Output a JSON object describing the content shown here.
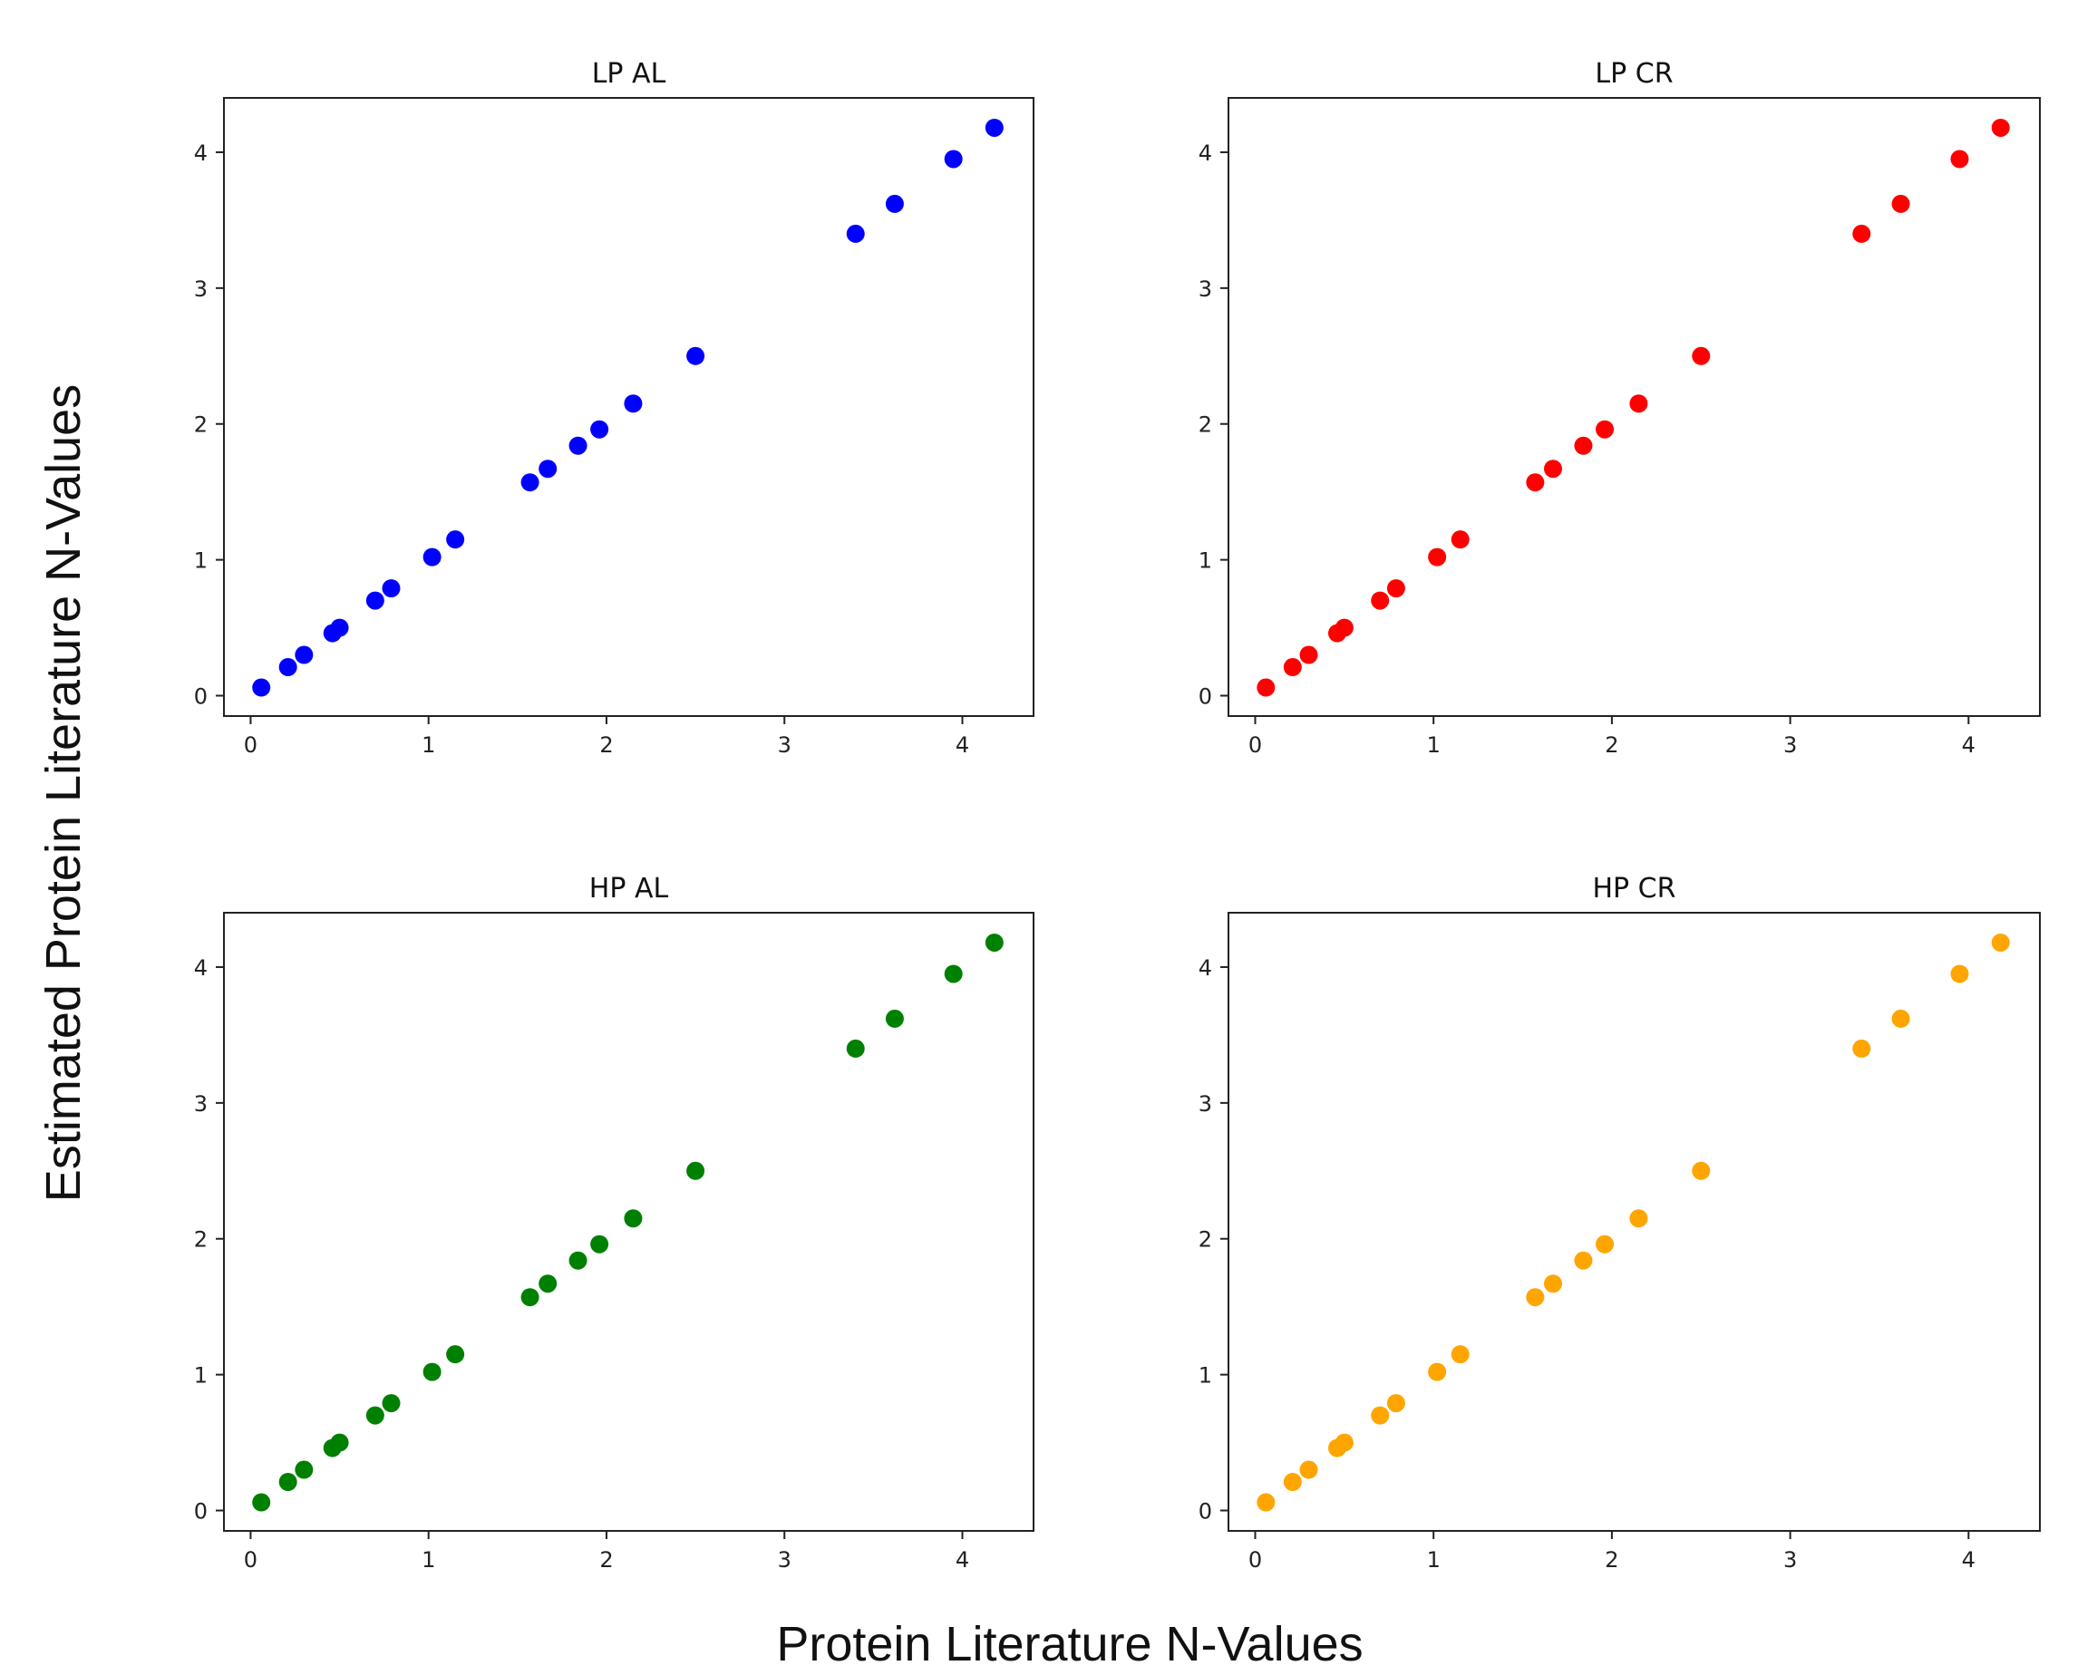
{
  "figure": {
    "xlabel": "Protein Literature N-Values",
    "ylabel": "Estimated Protein Literature N-Values"
  },
  "chart_data": [
    {
      "type": "scatter",
      "title": "LP AL",
      "color": "#0000ff",
      "xlim": [
        -0.15,
        4.4
      ],
      "ylim": [
        -0.15,
        4.4
      ],
      "xticks": [
        0,
        1,
        2,
        3,
        4
      ],
      "yticks": [
        0,
        1,
        2,
        3,
        4
      ],
      "x": [
        0.06,
        0.21,
        0.3,
        0.46,
        0.5,
        0.7,
        0.79,
        1.02,
        1.15,
        1.57,
        1.67,
        1.84,
        1.96,
        2.15,
        2.5,
        3.4,
        3.62,
        3.95,
        4.18
      ],
      "y": [
        0.06,
        0.21,
        0.3,
        0.46,
        0.5,
        0.7,
        0.79,
        1.02,
        1.15,
        1.57,
        1.67,
        1.84,
        1.96,
        2.15,
        2.5,
        3.4,
        3.62,
        3.95,
        4.18
      ]
    },
    {
      "type": "scatter",
      "title": "LP CR",
      "color": "#ff0000",
      "xlim": [
        -0.15,
        4.4
      ],
      "ylim": [
        -0.15,
        4.4
      ],
      "xticks": [
        0,
        1,
        2,
        3,
        4
      ],
      "yticks": [
        0,
        1,
        2,
        3,
        4
      ],
      "x": [
        0.06,
        0.21,
        0.3,
        0.46,
        0.5,
        0.7,
        0.79,
        1.02,
        1.15,
        1.57,
        1.67,
        1.84,
        1.96,
        2.15,
        2.5,
        3.4,
        3.62,
        3.95,
        4.18
      ],
      "y": [
        0.06,
        0.21,
        0.3,
        0.46,
        0.5,
        0.7,
        0.79,
        1.02,
        1.15,
        1.57,
        1.67,
        1.84,
        1.96,
        2.15,
        2.5,
        3.4,
        3.62,
        3.95,
        4.18
      ]
    },
    {
      "type": "scatter",
      "title": "HP AL",
      "color": "#008000",
      "xlim": [
        -0.15,
        4.4
      ],
      "ylim": [
        -0.15,
        4.4
      ],
      "xticks": [
        0,
        1,
        2,
        3,
        4
      ],
      "yticks": [
        0,
        1,
        2,
        3,
        4
      ],
      "x": [
        0.06,
        0.21,
        0.3,
        0.46,
        0.5,
        0.7,
        0.79,
        1.02,
        1.15,
        1.57,
        1.67,
        1.84,
        1.96,
        2.15,
        2.5,
        3.4,
        3.62,
        3.95,
        4.18
      ],
      "y": [
        0.06,
        0.21,
        0.3,
        0.46,
        0.5,
        0.7,
        0.79,
        1.02,
        1.15,
        1.57,
        1.67,
        1.84,
        1.96,
        2.15,
        2.5,
        3.4,
        3.62,
        3.95,
        4.18
      ]
    },
    {
      "type": "scatter",
      "title": "HP CR",
      "color": "#ffa500",
      "xlim": [
        -0.15,
        4.4
      ],
      "ylim": [
        -0.15,
        4.4
      ],
      "xticks": [
        0,
        1,
        2,
        3,
        4
      ],
      "yticks": [
        0,
        1,
        2,
        3,
        4
      ],
      "x": [
        0.06,
        0.21,
        0.3,
        0.46,
        0.5,
        0.7,
        0.79,
        1.02,
        1.15,
        1.57,
        1.67,
        1.84,
        1.96,
        2.15,
        2.5,
        3.4,
        3.62,
        3.95,
        4.18
      ],
      "y": [
        0.06,
        0.21,
        0.3,
        0.46,
        0.5,
        0.7,
        0.79,
        1.02,
        1.15,
        1.57,
        1.67,
        1.84,
        1.96,
        2.15,
        2.5,
        3.4,
        3.62,
        3.95,
        4.18
      ]
    }
  ]
}
